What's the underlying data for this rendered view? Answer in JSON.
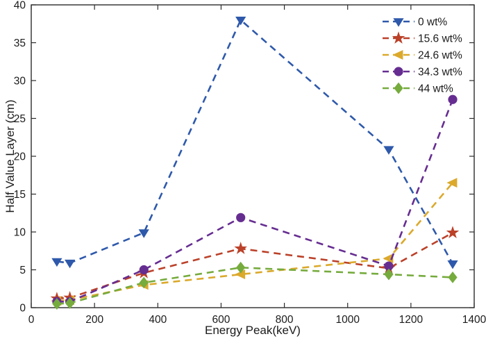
{
  "figure": {
    "background": "#ffffff",
    "axis_color": "#2b2b2b",
    "text_color": "#1b1b1b"
  },
  "chart_data": {
    "type": "line",
    "title": "",
    "xlabel": "Energy Peak(keV)",
    "ylabel": "Half Value Layer (cm)",
    "xlim": [
      0,
      1400
    ],
    "ylim": [
      0,
      40
    ],
    "xticks": [
      0,
      200,
      400,
      600,
      800,
      1000,
      1200,
      1400
    ],
    "yticks": [
      0,
      5,
      10,
      15,
      20,
      25,
      30,
      35,
      40
    ],
    "grid": false,
    "line_style": "dashed",
    "legend_position": "top-right-inside",
    "x": [
      81,
      122,
      356,
      662,
      1130,
      1332
    ],
    "series": [
      {
        "name": "0 wt%",
        "color": "#2e59ab",
        "marker": "triangle-down",
        "values": [
          6.1,
          5.9,
          9.9,
          38.0,
          20.9,
          5.8
        ]
      },
      {
        "name": "15.6 wt%",
        "color": "#bb4129",
        "marker": "star",
        "values": [
          1.2,
          1.3,
          4.6,
          7.8,
          5.2,
          9.9
        ]
      },
      {
        "name": "24.6 wt%",
        "color": "#dba92c",
        "marker": "triangle-left",
        "values": [
          0.9,
          1.0,
          3.0,
          4.4,
          6.5,
          16.5
        ]
      },
      {
        "name": "34.3 wt%",
        "color": "#662d91",
        "marker": "circle",
        "values": [
          0.8,
          0.8,
          5.0,
          11.9,
          5.5,
          27.5
        ]
      },
      {
        "name": "44 wt%",
        "color": "#76ab3d",
        "marker": "diamond",
        "values": [
          0.5,
          0.6,
          3.3,
          5.3,
          4.4,
          4.0
        ]
      }
    ]
  }
}
